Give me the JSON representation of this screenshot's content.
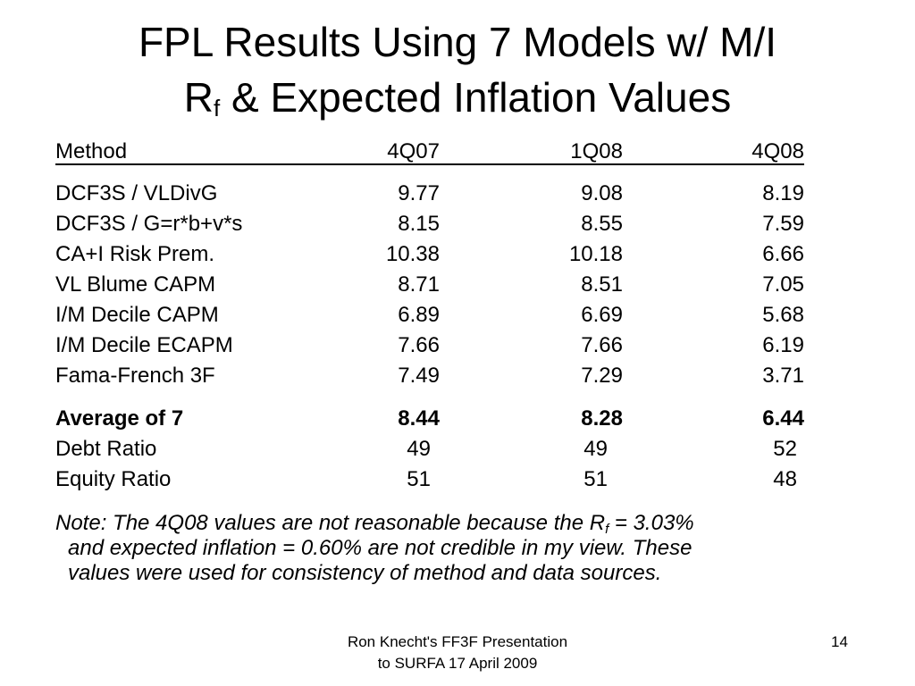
{
  "title": {
    "line1": "FPL Results Using 7 Models w/ M/I",
    "line2_r": "R",
    "line2_sub": "f",
    "line2_rest": " & Expected Inflation Values"
  },
  "table": {
    "headers": [
      "Method",
      "4Q07",
      "1Q08",
      "4Q08"
    ],
    "rows": [
      [
        "DCF3S / VLDivG",
        "9.77",
        "9.08",
        "8.19"
      ],
      [
        "DCF3S / G=r*b+v*s",
        "8.15",
        "8.55",
        "7.59"
      ],
      [
        "CA+I Risk Prem.",
        "10.38",
        "10.18",
        "6.66"
      ],
      [
        "VL Blume CAPM",
        "8.71",
        "8.51",
        "7.05"
      ],
      [
        "I/M Decile CAPM",
        "6.89",
        "6.69",
        "5.68"
      ],
      [
        "I/M Decile ECAPM",
        "7.66",
        "7.66",
        "6.19"
      ],
      [
        "Fama-French 3F",
        "7.49",
        "7.29",
        "3.71"
      ]
    ],
    "average": [
      "Average of 7",
      "8.44",
      "8.28",
      "6.44"
    ],
    "debt_ratio": [
      "Debt Ratio",
      "49",
      "49",
      "52"
    ],
    "equity_ratio": [
      "Equity Ratio",
      "51",
      "51",
      "48"
    ]
  },
  "note": {
    "part1": "Note: The 4Q08 values are not reasonable because the R",
    "sub": "f",
    "part2": " = 3.03%",
    "line2": "and expected inflation = 0.60% are not credible in my view.  These",
    "line3": "values were used for consistency of method and data sources."
  },
  "footer": {
    "line1": "Ron Knecht's FF3F Presentation",
    "line2": "to SURFA 17 April 2009",
    "page_number": "14"
  }
}
